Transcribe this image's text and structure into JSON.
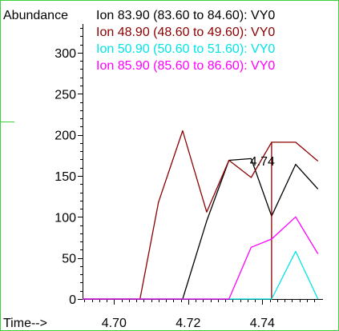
{
  "chart_data": {
    "type": "line",
    "ylabel": "Abundance",
    "xlabel": "Time-->",
    "xlim": [
      4.6915,
      4.7555
    ],
    "ylim": [
      0,
      335
    ],
    "x_ticks": [
      4.7,
      4.72,
      4.74
    ],
    "x_tick_labels": [
      "4.70",
      "4.72",
      "4.74"
    ],
    "y_ticks": [
      0,
      50,
      100,
      150,
      200,
      250,
      300
    ],
    "y_tick_labels": [
      "0",
      "50",
      "100",
      "150",
      "200",
      "250",
      "300"
    ],
    "annotations": [
      {
        "text": "4.74",
        "x": 4.74,
        "y": 178
      }
    ],
    "series": [
      {
        "name": "Ion  83.90 (83.60 to 84.60): VY0",
        "color": "#000000",
        "points": [
          [
            4.6915,
            0
          ],
          [
            4.707,
            0
          ],
          [
            4.712,
            0
          ],
          [
            4.7185,
            0
          ],
          [
            4.725,
            95
          ],
          [
            4.731,
            169
          ],
          [
            4.737,
            171
          ],
          [
            4.7425,
            101
          ],
          [
            4.749,
            164
          ],
          [
            4.755,
            134
          ]
        ]
      },
      {
        "name": "Ion  48.90 (48.60 to 49.60): VY0",
        "color": "#8b0000",
        "points": [
          [
            4.6915,
            0
          ],
          [
            4.707,
            0
          ],
          [
            4.712,
            118
          ],
          [
            4.7185,
            205
          ],
          [
            4.725,
            106
          ],
          [
            4.731,
            169
          ],
          [
            4.737,
            148
          ],
          [
            4.7425,
            191
          ],
          [
            4.7425,
            0
          ],
          [
            4.7425,
            191
          ],
          [
            4.749,
            191
          ],
          [
            4.755,
            168
          ]
        ]
      },
      {
        "name": "Ion  50.90 (50.60 to 51.60): VY0",
        "color": "#00e5e5",
        "points": [
          [
            4.6915,
            0
          ],
          [
            4.7425,
            0
          ],
          [
            4.749,
            58
          ],
          [
            4.755,
            0
          ]
        ]
      },
      {
        "name": "Ion  85.90 (85.60 to 86.60): VY0",
        "color": "#ff00ff",
        "points": [
          [
            4.6915,
            0
          ],
          [
            4.731,
            0
          ],
          [
            4.737,
            63
          ],
          [
            4.7425,
            73
          ],
          [
            4.749,
            100
          ],
          [
            4.755,
            55
          ]
        ]
      }
    ]
  }
}
